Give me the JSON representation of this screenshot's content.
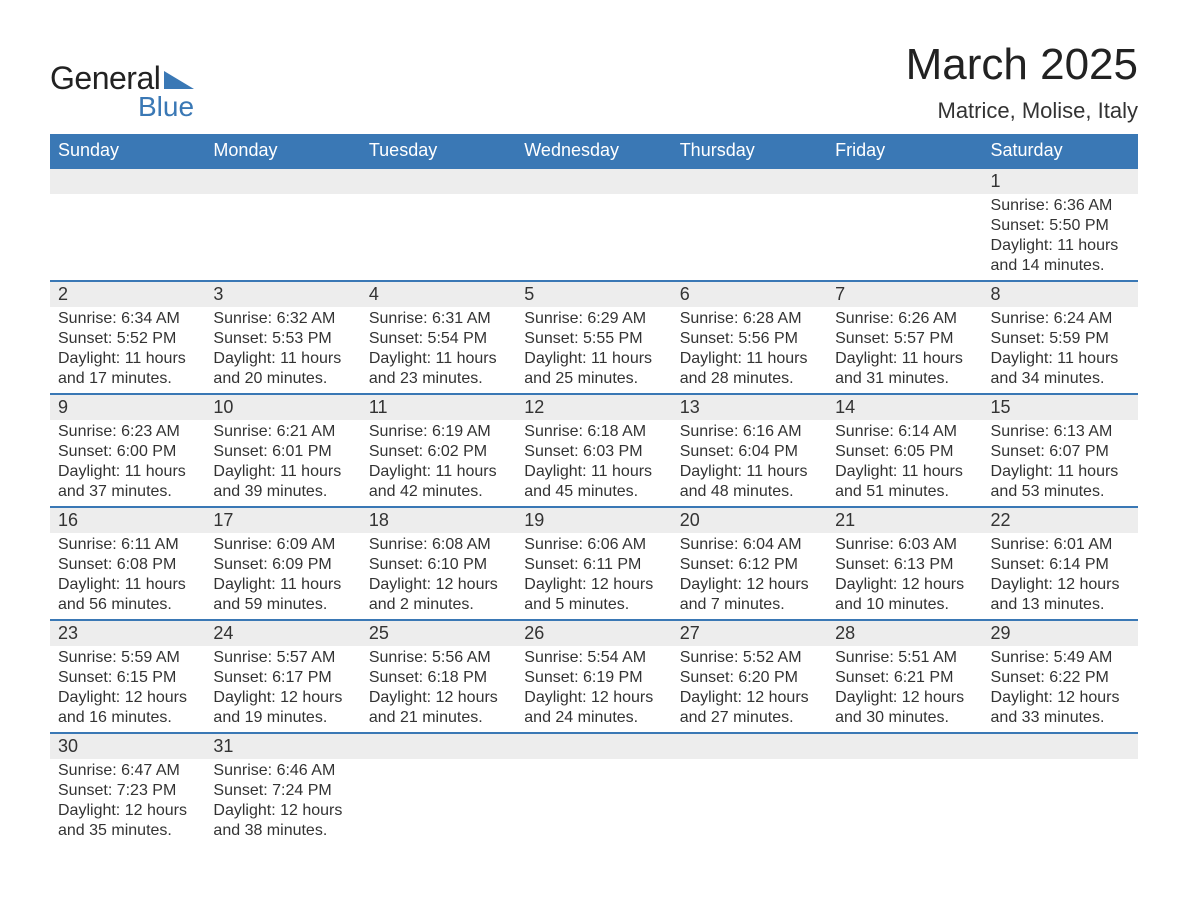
{
  "logo": {
    "general": "General",
    "blue": "Blue",
    "triangle_color": "#3a78b5"
  },
  "title": "March 2025",
  "location": "Matrice, Molise, Italy",
  "colors": {
    "header_bg": "#3a78b5",
    "header_text": "#ffffff",
    "band_bg": "#ededed",
    "band_border": "#3a78b5",
    "body_text": "#333333",
    "page_bg": "#ffffff"
  },
  "typography": {
    "title_fontsize": 44,
    "location_fontsize": 22,
    "dow_fontsize": 18,
    "daynum_fontsize": 18,
    "body_fontsize": 16
  },
  "days_of_week": [
    "Sunday",
    "Monday",
    "Tuesday",
    "Wednesday",
    "Thursday",
    "Friday",
    "Saturday"
  ],
  "weeks": [
    [
      {
        "n": "",
        "sr": "",
        "ss": "",
        "dl": ""
      },
      {
        "n": "",
        "sr": "",
        "ss": "",
        "dl": ""
      },
      {
        "n": "",
        "sr": "",
        "ss": "",
        "dl": ""
      },
      {
        "n": "",
        "sr": "",
        "ss": "",
        "dl": ""
      },
      {
        "n": "",
        "sr": "",
        "ss": "",
        "dl": ""
      },
      {
        "n": "",
        "sr": "",
        "ss": "",
        "dl": ""
      },
      {
        "n": "1",
        "sr": "Sunrise: 6:36 AM",
        "ss": "Sunset: 5:50 PM",
        "dl": "Daylight: 11 hours and 14 minutes."
      }
    ],
    [
      {
        "n": "2",
        "sr": "Sunrise: 6:34 AM",
        "ss": "Sunset: 5:52 PM",
        "dl": "Daylight: 11 hours and 17 minutes."
      },
      {
        "n": "3",
        "sr": "Sunrise: 6:32 AM",
        "ss": "Sunset: 5:53 PM",
        "dl": "Daylight: 11 hours and 20 minutes."
      },
      {
        "n": "4",
        "sr": "Sunrise: 6:31 AM",
        "ss": "Sunset: 5:54 PM",
        "dl": "Daylight: 11 hours and 23 minutes."
      },
      {
        "n": "5",
        "sr": "Sunrise: 6:29 AM",
        "ss": "Sunset: 5:55 PM",
        "dl": "Daylight: 11 hours and 25 minutes."
      },
      {
        "n": "6",
        "sr": "Sunrise: 6:28 AM",
        "ss": "Sunset: 5:56 PM",
        "dl": "Daylight: 11 hours and 28 minutes."
      },
      {
        "n": "7",
        "sr": "Sunrise: 6:26 AM",
        "ss": "Sunset: 5:57 PM",
        "dl": "Daylight: 11 hours and 31 minutes."
      },
      {
        "n": "8",
        "sr": "Sunrise: 6:24 AM",
        "ss": "Sunset: 5:59 PM",
        "dl": "Daylight: 11 hours and 34 minutes."
      }
    ],
    [
      {
        "n": "9",
        "sr": "Sunrise: 6:23 AM",
        "ss": "Sunset: 6:00 PM",
        "dl": "Daylight: 11 hours and 37 minutes."
      },
      {
        "n": "10",
        "sr": "Sunrise: 6:21 AM",
        "ss": "Sunset: 6:01 PM",
        "dl": "Daylight: 11 hours and 39 minutes."
      },
      {
        "n": "11",
        "sr": "Sunrise: 6:19 AM",
        "ss": "Sunset: 6:02 PM",
        "dl": "Daylight: 11 hours and 42 minutes."
      },
      {
        "n": "12",
        "sr": "Sunrise: 6:18 AM",
        "ss": "Sunset: 6:03 PM",
        "dl": "Daylight: 11 hours and 45 minutes."
      },
      {
        "n": "13",
        "sr": "Sunrise: 6:16 AM",
        "ss": "Sunset: 6:04 PM",
        "dl": "Daylight: 11 hours and 48 minutes."
      },
      {
        "n": "14",
        "sr": "Sunrise: 6:14 AM",
        "ss": "Sunset: 6:05 PM",
        "dl": "Daylight: 11 hours and 51 minutes."
      },
      {
        "n": "15",
        "sr": "Sunrise: 6:13 AM",
        "ss": "Sunset: 6:07 PM",
        "dl": "Daylight: 11 hours and 53 minutes."
      }
    ],
    [
      {
        "n": "16",
        "sr": "Sunrise: 6:11 AM",
        "ss": "Sunset: 6:08 PM",
        "dl": "Daylight: 11 hours and 56 minutes."
      },
      {
        "n": "17",
        "sr": "Sunrise: 6:09 AM",
        "ss": "Sunset: 6:09 PM",
        "dl": "Daylight: 11 hours and 59 minutes."
      },
      {
        "n": "18",
        "sr": "Sunrise: 6:08 AM",
        "ss": "Sunset: 6:10 PM",
        "dl": "Daylight: 12 hours and 2 minutes."
      },
      {
        "n": "19",
        "sr": "Sunrise: 6:06 AM",
        "ss": "Sunset: 6:11 PM",
        "dl": "Daylight: 12 hours and 5 minutes."
      },
      {
        "n": "20",
        "sr": "Sunrise: 6:04 AM",
        "ss": "Sunset: 6:12 PM",
        "dl": "Daylight: 12 hours and 7 minutes."
      },
      {
        "n": "21",
        "sr": "Sunrise: 6:03 AM",
        "ss": "Sunset: 6:13 PM",
        "dl": "Daylight: 12 hours and 10 minutes."
      },
      {
        "n": "22",
        "sr": "Sunrise: 6:01 AM",
        "ss": "Sunset: 6:14 PM",
        "dl": "Daylight: 12 hours and 13 minutes."
      }
    ],
    [
      {
        "n": "23",
        "sr": "Sunrise: 5:59 AM",
        "ss": "Sunset: 6:15 PM",
        "dl": "Daylight: 12 hours and 16 minutes."
      },
      {
        "n": "24",
        "sr": "Sunrise: 5:57 AM",
        "ss": "Sunset: 6:17 PM",
        "dl": "Daylight: 12 hours and 19 minutes."
      },
      {
        "n": "25",
        "sr": "Sunrise: 5:56 AM",
        "ss": "Sunset: 6:18 PM",
        "dl": "Daylight: 12 hours and 21 minutes."
      },
      {
        "n": "26",
        "sr": "Sunrise: 5:54 AM",
        "ss": "Sunset: 6:19 PM",
        "dl": "Daylight: 12 hours and 24 minutes."
      },
      {
        "n": "27",
        "sr": "Sunrise: 5:52 AM",
        "ss": "Sunset: 6:20 PM",
        "dl": "Daylight: 12 hours and 27 minutes."
      },
      {
        "n": "28",
        "sr": "Sunrise: 5:51 AM",
        "ss": "Sunset: 6:21 PM",
        "dl": "Daylight: 12 hours and 30 minutes."
      },
      {
        "n": "29",
        "sr": "Sunrise: 5:49 AM",
        "ss": "Sunset: 6:22 PM",
        "dl": "Daylight: 12 hours and 33 minutes."
      }
    ],
    [
      {
        "n": "30",
        "sr": "Sunrise: 6:47 AM",
        "ss": "Sunset: 7:23 PM",
        "dl": "Daylight: 12 hours and 35 minutes."
      },
      {
        "n": "31",
        "sr": "Sunrise: 6:46 AM",
        "ss": "Sunset: 7:24 PM",
        "dl": "Daylight: 12 hours and 38 minutes."
      },
      {
        "n": "",
        "sr": "",
        "ss": "",
        "dl": ""
      },
      {
        "n": "",
        "sr": "",
        "ss": "",
        "dl": ""
      },
      {
        "n": "",
        "sr": "",
        "ss": "",
        "dl": ""
      },
      {
        "n": "",
        "sr": "",
        "ss": "",
        "dl": ""
      },
      {
        "n": "",
        "sr": "",
        "ss": "",
        "dl": ""
      }
    ]
  ]
}
